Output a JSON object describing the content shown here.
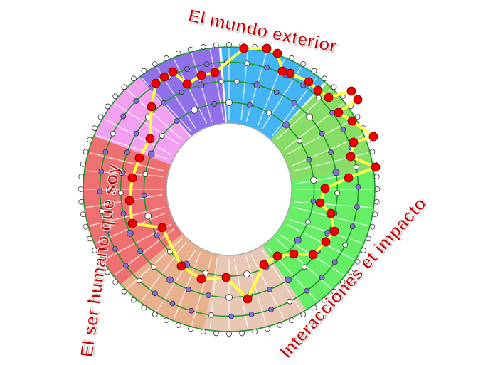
{
  "labels": {
    "top": "El mundo exterior",
    "left": "El ser humano que soy",
    "right": "Interacciones et impacto"
  },
  "colors": {
    "blue": "#44b4f4",
    "green_light": "#88dd66",
    "green": "#66ee66",
    "peach_light": "#e8c8b4",
    "peach": "#e8b08c",
    "red": "#ee7070",
    "pink": "#f4a0f0",
    "purple": "#9070e8",
    "ring_line": "#1a9a2a",
    "path": "#ffff44",
    "path_node": "#ee0000",
    "inner_node": "#8070dd",
    "outer_node": "#ffffff",
    "label": "#c00000"
  },
  "sectors": [
    {
      "color": "blue",
      "from": -3,
      "to": 42
    },
    {
      "color": "green_light",
      "from": 42,
      "to": 82
    },
    {
      "color": "green",
      "from": 82,
      "to": 148
    },
    {
      "color": "peach_light",
      "from": 148,
      "to": 190
    },
    {
      "color": "peach",
      "from": 190,
      "to": 228
    },
    {
      "color": "red",
      "from": 228,
      "to": 292
    },
    {
      "color": "pink",
      "from": 292,
      "to": 322
    },
    {
      "color": "purple",
      "from": 322,
      "to": 357
    }
  ]
}
